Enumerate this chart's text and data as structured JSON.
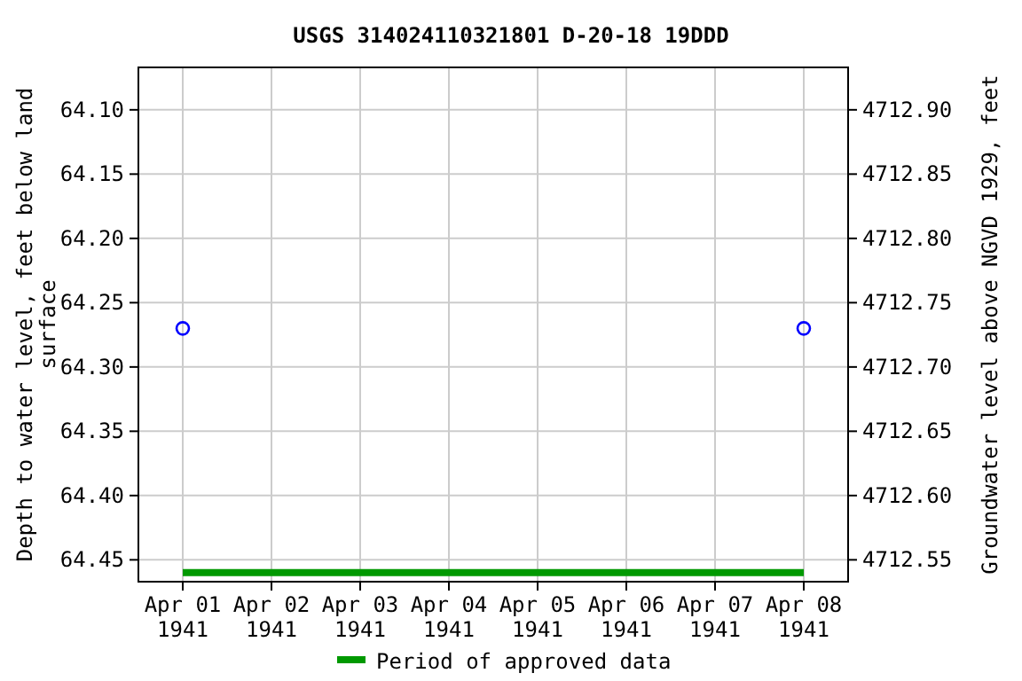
{
  "chart_data": {
    "type": "scatter",
    "title": "USGS 314024110321801 D-20-18 19DDD",
    "xlabel": null,
    "ylabel": "Depth to water level, feet below land surface",
    "y2label": "Groundwater level above NGVD 1929, feet",
    "x": [
      "1941-04-01",
      "1941-04-08"
    ],
    "series": [
      {
        "color": "#0000ff",
        "marker": "circle",
        "values": [
          64.27,
          64.27
        ]
      },
      {
        "type": "line",
        "name": "Period of approved data",
        "color": "#009900",
        "marker": "none",
        "x": [
          "1941-04-01",
          "1941-04-08"
        ],
        "values": [
          64.46,
          64.46
        ]
      }
    ],
    "xlim": [
      "1941-03-31T12:00",
      "1941-04-08T12:00"
    ],
    "xticks": [
      {
        "value": "1941-04-01",
        "label": "Apr 01\n1941"
      },
      {
        "value": "1941-04-02",
        "label": "Apr 02\n1941"
      },
      {
        "value": "1941-04-03",
        "label": "Apr 03\n1941"
      },
      {
        "value": "1941-04-04",
        "label": "Apr 04\n1941"
      },
      {
        "value": "1941-04-05",
        "label": "Apr 05\n1941"
      },
      {
        "value": "1941-04-06",
        "label": "Apr 06\n1941"
      },
      {
        "value": "1941-04-07",
        "label": "Apr 07\n1941"
      },
      {
        "value": "1941-04-08",
        "label": "Apr 08\n1941"
      }
    ],
    "ylim": [
      64.467,
      64.067
    ],
    "yticks": [
      {
        "value": 64.1,
        "label": "64.10"
      },
      {
        "value": 64.15,
        "label": "64.15"
      },
      {
        "value": 64.2,
        "label": "64.20"
      },
      {
        "value": 64.25,
        "label": "64.25"
      },
      {
        "value": 64.3,
        "label": "64.30"
      },
      {
        "value": 64.35,
        "label": "64.35"
      },
      {
        "value": 64.4,
        "label": "64.40"
      },
      {
        "value": 64.45,
        "label": "64.45"
      }
    ],
    "y2lim": [
      4712.533,
      4712.933
    ],
    "y2ticks": [
      {
        "value": 4712.9,
        "label": "4712.90"
      },
      {
        "value": 4712.85,
        "label": "4712.85"
      },
      {
        "value": 4712.8,
        "label": "4712.80"
      },
      {
        "value": 4712.75,
        "label": "4712.75"
      },
      {
        "value": 4712.7,
        "label": "4712.70"
      },
      {
        "value": 4712.65,
        "label": "4712.65"
      },
      {
        "value": 4712.6,
        "label": "4712.60"
      },
      {
        "value": 4712.55,
        "label": "4712.55"
      }
    ],
    "grid": true,
    "legend": "bottom"
  }
}
